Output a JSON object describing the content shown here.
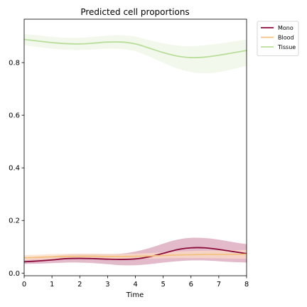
{
  "chart_data": {
    "type": "line",
    "title": "Predicted cell proportions",
    "xlabel": "Time",
    "ylabel": "",
    "xlim": [
      0,
      8
    ],
    "ylim": [
      -0.01,
      0.965
    ],
    "xticks": [
      0,
      1,
      2,
      3,
      4,
      5,
      6,
      7,
      8
    ],
    "yticks": [
      0.0,
      0.2,
      0.4,
      0.6,
      0.8
    ],
    "ytick_labels": [
      "0.0",
      "0.2",
      "0.4",
      "0.6",
      "0.8"
    ],
    "grid": false,
    "legend_position": "outside-top-right",
    "x": [
      0,
      0.5,
      1,
      1.5,
      2,
      2.5,
      3,
      3.5,
      4,
      4.5,
      5,
      5.5,
      6,
      6.5,
      7,
      7.5,
      8
    ],
    "series": [
      {
        "name": "Mono",
        "color": "#8b0a3a",
        "band_color": "#d9a3b8",
        "values": [
          0.043,
          0.046,
          0.05,
          0.055,
          0.056,
          0.055,
          0.053,
          0.052,
          0.054,
          0.062,
          0.075,
          0.089,
          0.096,
          0.096,
          0.09,
          0.082,
          0.074
        ],
        "lower": [
          0.035,
          0.036,
          0.038,
          0.04,
          0.04,
          0.038,
          0.034,
          0.03,
          0.03,
          0.034,
          0.04,
          0.045,
          0.048,
          0.048,
          0.045,
          0.042,
          0.04
        ],
        "upper": [
          0.052,
          0.058,
          0.064,
          0.07,
          0.072,
          0.072,
          0.072,
          0.074,
          0.082,
          0.095,
          0.112,
          0.127,
          0.134,
          0.133,
          0.127,
          0.118,
          0.11
        ]
      },
      {
        "name": "Blood",
        "color": "#f3c17f",
        "band_color": "#fbdcc6",
        "values": [
          0.058,
          0.06,
          0.062,
          0.063,
          0.064,
          0.064,
          0.063,
          0.063,
          0.064,
          0.065,
          0.067,
          0.069,
          0.07,
          0.071,
          0.071,
          0.071,
          0.072
        ],
        "lower": [
          0.049,
          0.051,
          0.053,
          0.054,
          0.055,
          0.055,
          0.054,
          0.054,
          0.055,
          0.055,
          0.056,
          0.057,
          0.057,
          0.057,
          0.056,
          0.055,
          0.054
        ],
        "upper": [
          0.068,
          0.07,
          0.072,
          0.073,
          0.074,
          0.074,
          0.073,
          0.073,
          0.074,
          0.076,
          0.079,
          0.082,
          0.084,
          0.085,
          0.086,
          0.087,
          0.088
        ]
      },
      {
        "name": "Tissue",
        "color": "#b9de9b",
        "band_color": "#eef6e4",
        "values": [
          0.888,
          0.882,
          0.876,
          0.872,
          0.871,
          0.874,
          0.878,
          0.878,
          0.871,
          0.855,
          0.838,
          0.825,
          0.819,
          0.821,
          0.828,
          0.837,
          0.846
        ],
        "lower": [
          0.866,
          0.859,
          0.853,
          0.849,
          0.848,
          0.85,
          0.853,
          0.852,
          0.843,
          0.823,
          0.8,
          0.778,
          0.764,
          0.759,
          0.764,
          0.775,
          0.788
        ],
        "upper": [
          0.908,
          0.904,
          0.898,
          0.894,
          0.894,
          0.898,
          0.903,
          0.904,
          0.899,
          0.886,
          0.873,
          0.865,
          0.862,
          0.866,
          0.872,
          0.88,
          0.888
        ]
      }
    ]
  }
}
